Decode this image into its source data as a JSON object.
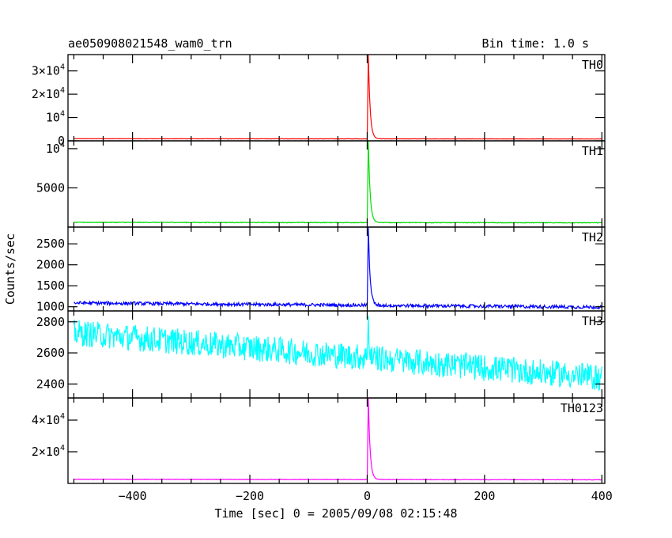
{
  "chart_data": {
    "type": "line",
    "title": "ae050908021548_wam0_trn",
    "bin_time_label": "Bin time: 1.0 s",
    "xlabel": "Time [sec] 0 = 2005/09/08 02:15:48",
    "ylabel": "Counts/sec",
    "xlim": [
      -510,
      405
    ],
    "x_ticks": [
      -400,
      -200,
      0,
      200,
      400
    ],
    "x_tick_labels": [
      "−400",
      "−200",
      "0",
      "200",
      "400"
    ],
    "panels": [
      {
        "name": "TH0",
        "color": "#ff0000",
        "ylim": [
          0,
          37000
        ],
        "y_ticks": [
          0,
          10000,
          20000,
          30000
        ],
        "y_tick_labels": [
          {
            "base": "0",
            "exp": ""
          },
          {
            "base": "10",
            "exp": "4"
          },
          {
            "base": "2×10",
            "exp": "4"
          },
          {
            "base": "3×10",
            "exp": "4"
          }
        ],
        "baseline_start": 900,
        "baseline_end": 800,
        "noise": 60,
        "peak_x": 2,
        "peak_y": 37000,
        "decay": 3
      },
      {
        "name": "TH1",
        "color": "#00dd00",
        "ylim": [
          0,
          11000
        ],
        "y_ticks": [
          5000,
          10000
        ],
        "y_tick_labels": [
          {
            "base": "5000",
            "exp": ""
          },
          {
            "base": "10",
            "exp": "4"
          }
        ],
        "baseline_start": 600,
        "baseline_end": 550,
        "noise": 40,
        "peak_x": 2,
        "peak_y": 11000,
        "decay": 3
      },
      {
        "name": "TH2",
        "color": "#0000ff",
        "ylim": [
          900,
          2900
        ],
        "y_ticks": [
          1000,
          1500,
          2000,
          2500
        ],
        "y_tick_labels": [
          {
            "base": "1000",
            "exp": ""
          },
          {
            "base": "1500",
            "exp": ""
          },
          {
            "base": "2000",
            "exp": ""
          },
          {
            "base": "2500",
            "exp": ""
          }
        ],
        "baseline_start": 1090,
        "baseline_end": 990,
        "noise": 40,
        "peak_x": 2,
        "peak_y": 2900,
        "decay": 3
      },
      {
        "name": "TH3",
        "color": "#00ffff",
        "ylim": [
          2310,
          2870
        ],
        "y_ticks": [
          2400,
          2600,
          2800
        ],
        "y_tick_labels": [
          {
            "base": "2400",
            "exp": ""
          },
          {
            "base": "2600",
            "exp": ""
          },
          {
            "base": "2800",
            "exp": ""
          }
        ],
        "baseline_start": 2730,
        "baseline_end": 2440,
        "noise": 85,
        "peak_x": 2,
        "peak_y": 2840,
        "decay": 1
      },
      {
        "name": "TH0123",
        "color": "#ff00ff",
        "ylim": [
          0,
          54000
        ],
        "y_ticks": [
          20000,
          40000
        ],
        "y_tick_labels": [
          {
            "base": "2×10",
            "exp": "4"
          },
          {
            "base": "4×10",
            "exp": "4"
          }
        ],
        "baseline_start": 2600,
        "baseline_end": 2300,
        "noise": 150,
        "peak_x": 2,
        "peak_y": 54000,
        "decay": 3
      }
    ]
  }
}
